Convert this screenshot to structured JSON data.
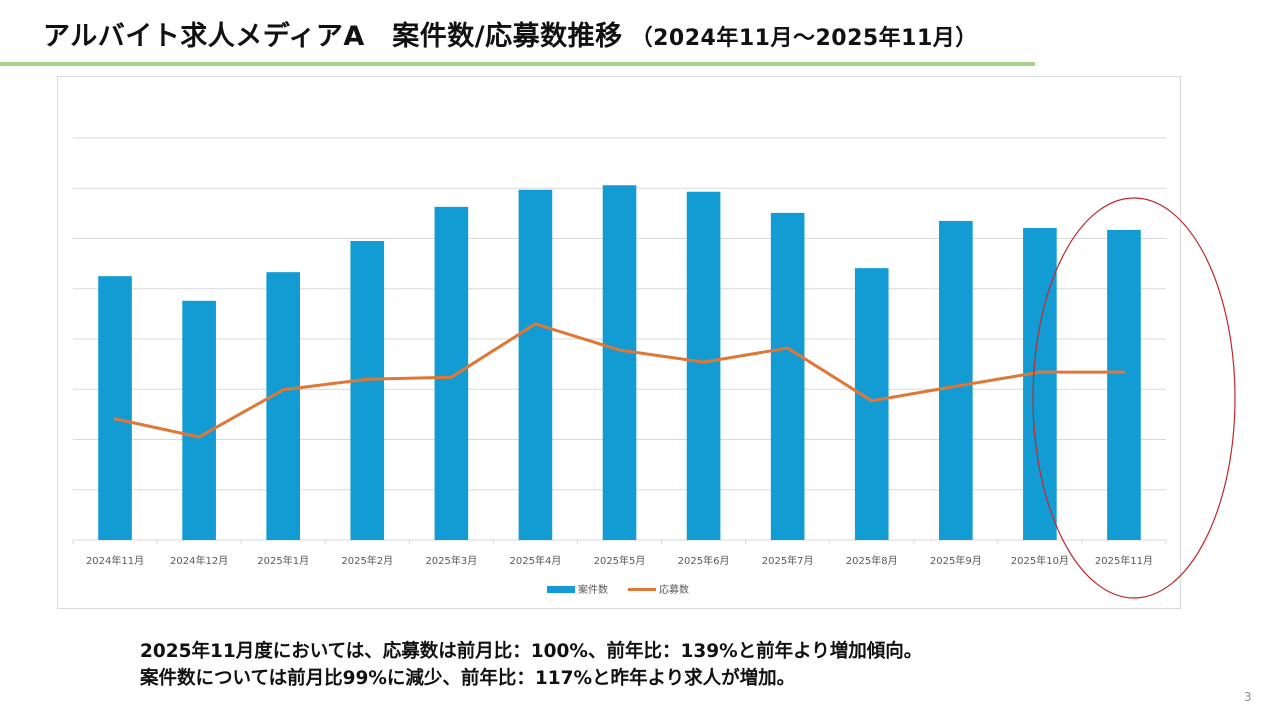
{
  "header": {
    "title": "アルバイト求人メディアA　案件数/応募数推移",
    "period": "（2024年11月～2025年11月）"
  },
  "colors": {
    "bar": "#139cd4",
    "line": "#df7737",
    "title_rule": "#a9d18e",
    "highlight_ellipse": "#c0282d",
    "gridline": "#d9d9d9"
  },
  "chart_data": {
    "type": "bar",
    "combo": "bar+line",
    "title": "",
    "xlabel": "",
    "ylabel": "",
    "y_axis_labels_visible": false,
    "ylim": [
      0,
      8
    ],
    "y_units": "gridline intervals (axis unlabeled)",
    "grid": true,
    "legend_position": "bottom",
    "categories": [
      "2024年11月",
      "2024年12月",
      "2025年1月",
      "2025年2月",
      "2025年3月",
      "2025年4月",
      "2025年5月",
      "2025年6月",
      "2025年7月",
      "2025年8月",
      "2025年9月",
      "2025年10月",
      "2025年11月"
    ],
    "series": [
      {
        "name": "案件数",
        "type": "bar",
        "values": [
          5.25,
          4.76,
          5.33,
          5.95,
          6.63,
          6.97,
          7.06,
          6.93,
          6.51,
          5.41,
          6.35,
          6.21,
          6.17
        ]
      },
      {
        "name": "応募数",
        "type": "line",
        "values": [
          2.41,
          2.05,
          2.99,
          3.2,
          3.24,
          4.3,
          3.78,
          3.54,
          3.82,
          2.77,
          3.06,
          3.34,
          3.34
        ]
      }
    ],
    "annotations": [
      {
        "type": "ellipse",
        "target_category": "2025年11月",
        "description": "red outline highlighting latest month"
      }
    ]
  },
  "summary": {
    "line1": "2025年11月度においては、応募数は前月比：100%、前年比：139%と前年より増加傾向。",
    "line2": "案件数については前月比99%に減少、前年比：117%と昨年より求人が増加。"
  },
  "page_number": "3"
}
